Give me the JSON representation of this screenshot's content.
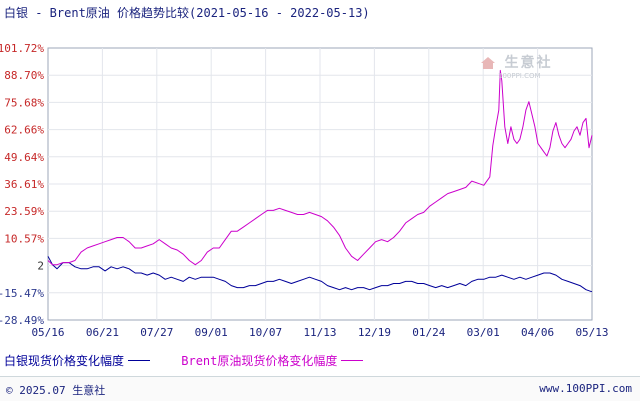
{
  "chart_data": {
    "type": "line",
    "title": "白银 - Brent原油 价格趋势比较(2021-05-16 - 2022-05-13)",
    "yticks": [
      "101.72%",
      "88.70%",
      "75.68%",
      "62.66%",
      "49.64%",
      "36.61%",
      "23.59%",
      "10.57%",
      "2",
      "-15.47%",
      "-28.49%"
    ],
    "ylim": [
      -28.49,
      101.72
    ],
    "xticks": [
      "05/16",
      "06/21",
      "07/27",
      "09/01",
      "10/07",
      "11/13",
      "12/19",
      "01/24",
      "03/01",
      "04/06",
      "05/13"
    ],
    "xlim": [
      0,
      362
    ],
    "grid": true,
    "series": [
      {
        "name": "白银现货价格变化幅度",
        "color": "#000099",
        "points": [
          [
            0,
            2
          ],
          [
            3,
            -2
          ],
          [
            6,
            -4
          ],
          [
            10,
            -1
          ],
          [
            14,
            -1
          ],
          [
            18,
            -3
          ],
          [
            22,
            -4
          ],
          [
            26,
            -4
          ],
          [
            30,
            -3
          ],
          [
            34,
            -3
          ],
          [
            38,
            -5
          ],
          [
            42,
            -3
          ],
          [
            46,
            -4
          ],
          [
            50,
            -3
          ],
          [
            54,
            -4
          ],
          [
            58,
            -6
          ],
          [
            62,
            -6
          ],
          [
            66,
            -7
          ],
          [
            70,
            -6
          ],
          [
            74,
            -7
          ],
          [
            78,
            -9
          ],
          [
            82,
            -8
          ],
          [
            86,
            -9
          ],
          [
            90,
            -10
          ],
          [
            94,
            -8
          ],
          [
            98,
            -9
          ],
          [
            102,
            -8
          ],
          [
            106,
            -8
          ],
          [
            110,
            -8
          ],
          [
            114,
            -9
          ],
          [
            118,
            -10
          ],
          [
            122,
            -12
          ],
          [
            126,
            -13
          ],
          [
            130,
            -13
          ],
          [
            134,
            -12
          ],
          [
            138,
            -12
          ],
          [
            142,
            -11
          ],
          [
            146,
            -10
          ],
          [
            150,
            -10
          ],
          [
            154,
            -9
          ],
          [
            158,
            -10
          ],
          [
            162,
            -11
          ],
          [
            166,
            -10
          ],
          [
            170,
            -9
          ],
          [
            174,
            -8
          ],
          [
            178,
            -9
          ],
          [
            182,
            -10
          ],
          [
            186,
            -12
          ],
          [
            190,
            -13
          ],
          [
            194,
            -14
          ],
          [
            198,
            -13
          ],
          [
            202,
            -14
          ],
          [
            206,
            -13
          ],
          [
            210,
            -13
          ],
          [
            214,
            -14
          ],
          [
            218,
            -13
          ],
          [
            222,
            -12
          ],
          [
            226,
            -12
          ],
          [
            230,
            -11
          ],
          [
            234,
            -11
          ],
          [
            238,
            -10
          ],
          [
            242,
            -10
          ],
          [
            246,
            -11
          ],
          [
            250,
            -11
          ],
          [
            254,
            -12
          ],
          [
            258,
            -13
          ],
          [
            262,
            -12
          ],
          [
            266,
            -13
          ],
          [
            270,
            -12
          ],
          [
            274,
            -11
          ],
          [
            278,
            -12
          ],
          [
            282,
            -10
          ],
          [
            286,
            -9
          ],
          [
            290,
            -9
          ],
          [
            294,
            -8
          ],
          [
            298,
            -8
          ],
          [
            302,
            -7
          ],
          [
            306,
            -8
          ],
          [
            310,
            -9
          ],
          [
            314,
            -8
          ],
          [
            318,
            -9
          ],
          [
            322,
            -8
          ],
          [
            326,
            -7
          ],
          [
            330,
            -6
          ],
          [
            334,
            -6
          ],
          [
            338,
            -7
          ],
          [
            342,
            -9
          ],
          [
            346,
            -10
          ],
          [
            350,
            -11
          ],
          [
            354,
            -12
          ],
          [
            358,
            -14
          ],
          [
            362,
            -15
          ]
        ]
      },
      {
        "name": "Brent原油现货价格变化幅度",
        "color": "#cc00cc",
        "points": [
          [
            0,
            0
          ],
          [
            3,
            -2
          ],
          [
            6,
            -2
          ],
          [
            10,
            -1
          ],
          [
            14,
            -1
          ],
          [
            18,
            0
          ],
          [
            22,
            4
          ],
          [
            26,
            6
          ],
          [
            30,
            7
          ],
          [
            34,
            8
          ],
          [
            38,
            9
          ],
          [
            42,
            10
          ],
          [
            46,
            11
          ],
          [
            50,
            11
          ],
          [
            54,
            9
          ],
          [
            58,
            6
          ],
          [
            62,
            6
          ],
          [
            66,
            7
          ],
          [
            70,
            8
          ],
          [
            74,
            10
          ],
          [
            78,
            8
          ],
          [
            82,
            6
          ],
          [
            86,
            5
          ],
          [
            90,
            3
          ],
          [
            94,
            0
          ],
          [
            98,
            -2
          ],
          [
            102,
            0
          ],
          [
            106,
            4
          ],
          [
            110,
            6
          ],
          [
            114,
            6
          ],
          [
            118,
            10
          ],
          [
            122,
            14
          ],
          [
            126,
            14
          ],
          [
            130,
            16
          ],
          [
            134,
            18
          ],
          [
            138,
            20
          ],
          [
            142,
            22
          ],
          [
            146,
            24
          ],
          [
            150,
            24
          ],
          [
            154,
            25
          ],
          [
            158,
            24
          ],
          [
            162,
            23
          ],
          [
            166,
            22
          ],
          [
            170,
            22
          ],
          [
            174,
            23
          ],
          [
            178,
            22
          ],
          [
            182,
            21
          ],
          [
            186,
            19
          ],
          [
            190,
            16
          ],
          [
            194,
            12
          ],
          [
            198,
            6
          ],
          [
            202,
            2
          ],
          [
            206,
            0
          ],
          [
            210,
            3
          ],
          [
            214,
            6
          ],
          [
            218,
            9
          ],
          [
            222,
            10
          ],
          [
            226,
            9
          ],
          [
            230,
            11
          ],
          [
            234,
            14
          ],
          [
            238,
            18
          ],
          [
            242,
            20
          ],
          [
            246,
            22
          ],
          [
            250,
            23
          ],
          [
            254,
            26
          ],
          [
            258,
            28
          ],
          [
            262,
            30
          ],
          [
            266,
            32
          ],
          [
            270,
            33
          ],
          [
            274,
            34
          ],
          [
            278,
            35
          ],
          [
            282,
            38
          ],
          [
            286,
            37
          ],
          [
            290,
            36
          ],
          [
            294,
            40
          ],
          [
            296,
            55
          ],
          [
            298,
            64
          ],
          [
            300,
            72
          ],
          [
            301,
            91
          ],
          [
            302,
            86
          ],
          [
            304,
            64
          ],
          [
            306,
            56
          ],
          [
            308,
            64
          ],
          [
            310,
            58
          ],
          [
            312,
            56
          ],
          [
            314,
            58
          ],
          [
            316,
            64
          ],
          [
            318,
            72
          ],
          [
            320,
            76
          ],
          [
            322,
            70
          ],
          [
            324,
            64
          ],
          [
            326,
            56
          ],
          [
            328,
            54
          ],
          [
            330,
            52
          ],
          [
            332,
            50
          ],
          [
            334,
            54
          ],
          [
            336,
            62
          ],
          [
            338,
            66
          ],
          [
            340,
            60
          ],
          [
            342,
            56
          ],
          [
            344,
            54
          ],
          [
            346,
            56
          ],
          [
            348,
            58
          ],
          [
            350,
            62
          ],
          [
            352,
            64
          ],
          [
            354,
            60
          ],
          [
            356,
            66
          ],
          [
            358,
            68
          ],
          [
            360,
            54
          ],
          [
            362,
            60
          ]
        ]
      }
    ],
    "legend_position": "bottom-left"
  },
  "watermark": {
    "name": "生意社",
    "url": "100PPI.COM",
    "icon": "house-icon"
  },
  "footer": {
    "copyright": "© 2025.07 生意社",
    "site": "www.100PPI.com"
  }
}
